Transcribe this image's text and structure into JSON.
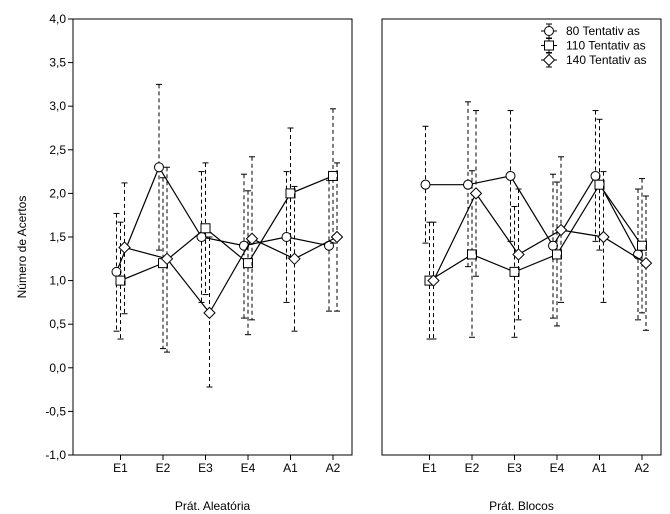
{
  "chart_data": {
    "type": "line",
    "ylabel": "Número de Acertos",
    "ylim": [
      -1.0,
      4.0
    ],
    "yticks": [
      "4,0",
      "3,5",
      "3,0",
      "2,5",
      "2,0",
      "1,5",
      "1,0",
      "0,5",
      "0,0",
      "-0,5",
      "-1,0"
    ],
    "categories": [
      "E1",
      "E2",
      "E3",
      "E4",
      "A1",
      "A2"
    ],
    "error_bars": "dashed",
    "grid": false,
    "legend_position": "top-right",
    "legend": [
      {
        "label": "80 Tentativ as",
        "marker": "circle"
      },
      {
        "label": "110 Tentativ as",
        "marker": "square"
      },
      {
        "label": "140 Tentativ as",
        "marker": "diamond"
      }
    ],
    "panels": [
      {
        "xlabel": "Prát. Aleatória",
        "series": [
          {
            "name": "80 Tentativ as",
            "marker": "circle",
            "values": [
              1.1,
              2.3,
              1.5,
              1.4,
              1.5,
              1.4
            ],
            "upper": [
              1.77,
              3.25,
              2.25,
              2.22,
              2.25,
              2.15
            ],
            "lower": [
              0.42,
              1.35,
              0.75,
              0.57,
              0.75,
              0.65
            ]
          },
          {
            "name": "110 Tentativ as",
            "marker": "square",
            "values": [
              1.0,
              1.2,
              1.6,
              1.2,
              2.0,
              2.2
            ],
            "upper": [
              1.67,
              2.18,
              2.35,
              2.03,
              2.75,
              2.97
            ],
            "lower": [
              0.33,
              0.22,
              0.84,
              0.38,
              1.26,
              1.43
            ]
          },
          {
            "name": "140 Tentativ as",
            "marker": "diamond",
            "values": [
              1.38,
              1.25,
              0.63,
              1.48,
              1.25,
              1.5
            ],
            "upper": [
              2.12,
              2.3,
              1.5,
              2.42,
              2.08,
              2.35
            ],
            "lower": [
              0.62,
              0.18,
              -0.22,
              0.55,
              0.42,
              0.65
            ]
          }
        ]
      },
      {
        "xlabel": "Prát. Blocos",
        "series": [
          {
            "name": "80 Tentativ as",
            "marker": "circle",
            "values": [
              2.1,
              2.1,
              2.2,
              1.4,
              2.2,
              1.3
            ],
            "upper": [
              2.77,
              3.05,
              2.95,
              2.22,
              2.95,
              2.05
            ],
            "lower": [
              1.43,
              1.16,
              1.45,
              0.57,
              1.45,
              0.55
            ]
          },
          {
            "name": "110 Tentativ as",
            "marker": "square",
            "values": [
              1.0,
              1.3,
              1.1,
              1.3,
              2.1,
              1.4
            ],
            "upper": [
              1.67,
              2.26,
              1.85,
              2.13,
              2.85,
              2.17
            ],
            "lower": [
              0.33,
              0.35,
              0.35,
              0.48,
              1.35,
              0.63
            ]
          },
          {
            "name": "140 Tentativ as",
            "marker": "diamond",
            "values": [
              1.0,
              2.0,
              1.3,
              1.58,
              1.5,
              1.2
            ],
            "upper": [
              1.67,
              2.95,
              2.05,
              2.42,
              2.25,
              1.97
            ],
            "lower": [
              0.33,
              1.05,
              0.55,
              0.75,
              0.75,
              0.43
            ]
          }
        ]
      }
    ]
  }
}
